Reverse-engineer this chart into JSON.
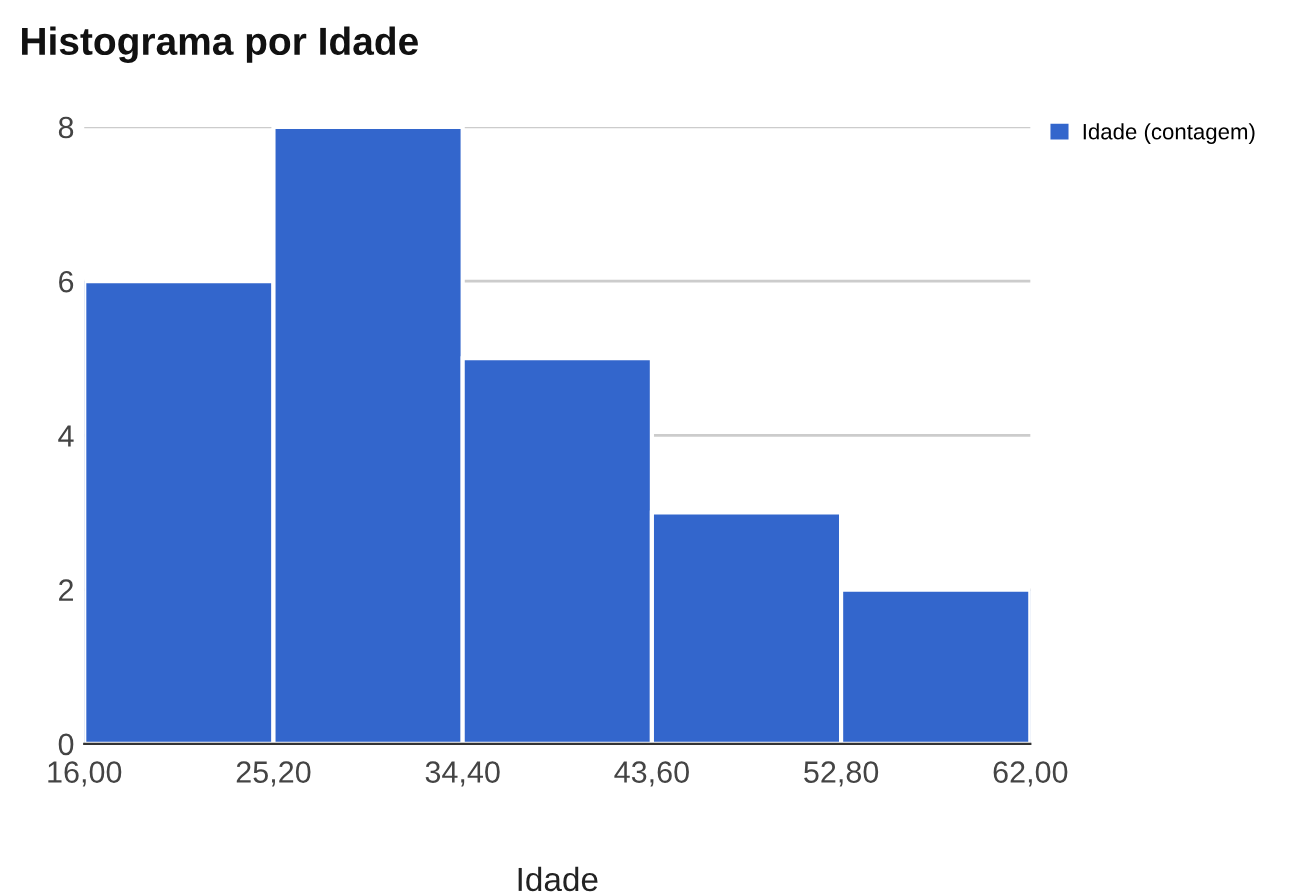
{
  "chart_data": {
    "type": "histogram",
    "title": "Histograma por Idade",
    "xlabel": "Idade",
    "bins": [
      16,
      25.2,
      34.4,
      43.6,
      52.8,
      62
    ],
    "series": [
      {
        "name": "Idade (contagem)",
        "color": "#3366cc",
        "values": [
          6,
          8,
          5,
          3,
          2
        ]
      }
    ],
    "xlim": [
      16,
      62
    ],
    "xticks": [
      {
        "value": 16,
        "label": "16,00"
      },
      {
        "value": 25.2,
        "label": "25,20"
      },
      {
        "value": 34.4,
        "label": "34,40"
      },
      {
        "value": 43.6,
        "label": "43,60"
      },
      {
        "value": 52.8,
        "label": "52,80"
      },
      {
        "value": 62,
        "label": "62,00"
      }
    ],
    "ylim": [
      0,
      8
    ],
    "yticks": [
      0,
      2,
      4,
      6,
      8
    ],
    "grid": "y",
    "legend": "top right"
  }
}
